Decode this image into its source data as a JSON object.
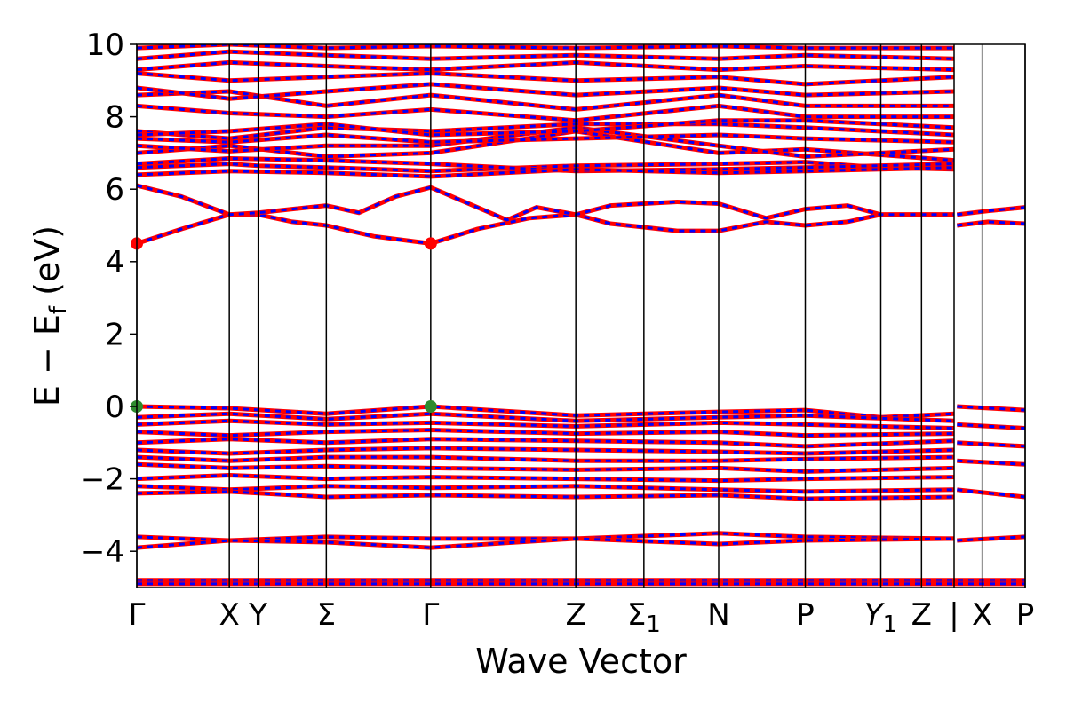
{
  "chart_data": {
    "type": "line",
    "title": "",
    "xlabel": "Wave Vector",
    "ylabel": "E − E",
    "ylabel_sub": "f",
    "ylabel_unit": " (eV)",
    "ylim": [
      -5,
      10
    ],
    "yticks": [
      {
        "value": 10,
        "label": "10"
      },
      {
        "value": 8,
        "label": "8"
      },
      {
        "value": 6,
        "label": "6"
      },
      {
        "value": 4,
        "label": "4"
      },
      {
        "value": 2,
        "label": "2"
      },
      {
        "value": 0,
        "label": "0"
      },
      {
        "value": -2,
        "label": "−2"
      },
      {
        "value": -4,
        "label": "−4"
      }
    ],
    "xlim": [
      0,
      12.0
    ],
    "kpoints": [
      {
        "x": 0.0,
        "label": "Γ",
        "sub": ""
      },
      {
        "x": 1.25,
        "label": "X",
        "sub": ""
      },
      {
        "x": 1.64,
        "label": "Y",
        "sub": ""
      },
      {
        "x": 2.56,
        "label": "Σ",
        "sub": ""
      },
      {
        "x": 3.97,
        "label": "Γ",
        "sub": ""
      },
      {
        "x": 5.93,
        "label": "Z",
        "sub": ""
      },
      {
        "x": 6.85,
        "label": "Σ",
        "sub": "1"
      },
      {
        "x": 7.86,
        "label": "N",
        "sub": ""
      },
      {
        "x": 9.03,
        "label": "P",
        "sub": ""
      },
      {
        "x": 10.05,
        "label": "Y",
        "sub": "1",
        "italic": true
      },
      {
        "x": 10.6,
        "label": "Z",
        "sub": ""
      },
      {
        "x": 11.04,
        "label": "|",
        "sub": ""
      },
      {
        "x": 11.42,
        "label": "X",
        "sub": ""
      },
      {
        "x": 12.0,
        "label": "P",
        "sub": ""
      }
    ],
    "series_colors": {
      "spin_up": "#ff0000",
      "spin_down": "#0000ff"
    },
    "conduction_bands": [
      [
        [
          0,
          4.5
        ],
        [
          0.6,
          4.9
        ],
        [
          1.25,
          5.3
        ],
        [
          1.64,
          5.3
        ],
        [
          2.1,
          5.1
        ],
        [
          2.56,
          5.0
        ],
        [
          3.2,
          4.7
        ],
        [
          3.97,
          4.5
        ],
        [
          4.6,
          4.9
        ],
        [
          5.3,
          5.2
        ],
        [
          5.93,
          5.3
        ],
        [
          6.4,
          5.05
        ],
        [
          6.85,
          4.95
        ],
        [
          7.3,
          4.85
        ],
        [
          7.86,
          4.85
        ],
        [
          8.5,
          5.1
        ],
        [
          9.03,
          5.0
        ],
        [
          9.6,
          5.1
        ],
        [
          10.05,
          5.3
        ],
        [
          10.6,
          5.3
        ],
        [
          11.04,
          5.3
        ]
      ],
      [
        [
          0,
          6.1
        ],
        [
          0.6,
          5.8
        ],
        [
          1.25,
          5.3
        ],
        [
          1.64,
          5.35
        ],
        [
          2.1,
          5.45
        ],
        [
          2.56,
          5.55
        ],
        [
          3.0,
          5.35
        ],
        [
          3.5,
          5.8
        ],
        [
          3.97,
          6.05
        ],
        [
          4.6,
          5.5
        ],
        [
          5.0,
          5.15
        ],
        [
          5.4,
          5.5
        ],
        [
          5.93,
          5.3
        ],
        [
          6.4,
          5.55
        ],
        [
          6.85,
          5.6
        ],
        [
          7.3,
          5.65
        ],
        [
          7.86,
          5.6
        ],
        [
          8.5,
          5.2
        ],
        [
          9.03,
          5.45
        ],
        [
          9.6,
          5.55
        ],
        [
          10.05,
          5.3
        ],
        [
          10.6,
          5.3
        ],
        [
          11.04,
          5.3
        ]
      ],
      [
        [
          11.08,
          5.0
        ],
        [
          11.5,
          5.1
        ],
        [
          12.0,
          5.05
        ]
      ],
      [
        [
          11.08,
          5.3
        ],
        [
          11.5,
          5.4
        ],
        [
          12.0,
          5.5
        ]
      ],
      [
        [
          0,
          6.6
        ],
        [
          1.25,
          6.7
        ],
        [
          1.64,
          6.65
        ],
        [
          2.56,
          6.6
        ],
        [
          3.97,
          6.5
        ],
        [
          5.93,
          6.65
        ],
        [
          7.86,
          6.7
        ],
        [
          9.03,
          6.75
        ],
        [
          10.05,
          6.6
        ],
        [
          11.04,
          6.55
        ]
      ],
      [
        [
          0,
          6.7
        ],
        [
          1.25,
          6.85
        ],
        [
          2.56,
          6.8
        ],
        [
          3.97,
          6.7
        ],
        [
          5.93,
          6.5
        ],
        [
          7.86,
          6.55
        ],
        [
          9.03,
          6.6
        ],
        [
          11.04,
          6.7
        ]
      ],
      [
        [
          0,
          6.4
        ],
        [
          1.25,
          6.5
        ],
        [
          2.56,
          6.45
        ],
        [
          3.97,
          6.35
        ],
        [
          5.93,
          6.55
        ],
        [
          7.86,
          6.45
        ],
        [
          9.03,
          6.5
        ],
        [
          11.04,
          6.6
        ]
      ],
      [
        [
          0,
          7.0
        ],
        [
          1.25,
          7.2
        ],
        [
          2.56,
          6.9
        ],
        [
          3.97,
          7.0
        ],
        [
          5.93,
          7.6
        ],
        [
          7.86,
          7.0
        ],
        [
          9.03,
          7.1
        ],
        [
          11.04,
          6.8
        ]
      ],
      [
        [
          0,
          7.2
        ],
        [
          1.25,
          7.05
        ],
        [
          2.56,
          7.2
        ],
        [
          3.97,
          7.2
        ],
        [
          5.93,
          7.7
        ],
        [
          7.86,
          7.2
        ],
        [
          9.03,
          6.9
        ],
        [
          11.04,
          7.1
        ]
      ],
      [
        [
          0,
          7.4
        ],
        [
          1.25,
          7.3
        ],
        [
          2.56,
          7.5
        ],
        [
          3.97,
          7.3
        ],
        [
          5.93,
          7.4
        ],
        [
          7.86,
          7.5
        ],
        [
          9.03,
          7.4
        ],
        [
          11.04,
          7.3
        ]
      ],
      [
        [
          0,
          7.6
        ],
        [
          1.25,
          7.4
        ],
        [
          2.56,
          7.7
        ],
        [
          3.97,
          7.6
        ],
        [
          5.93,
          7.8
        ],
        [
          7.86,
          7.8
        ],
        [
          9.03,
          7.7
        ],
        [
          11.04,
          7.5
        ]
      ],
      [
        [
          0,
          7.5
        ],
        [
          1.25,
          7.6
        ],
        [
          2.56,
          7.8
        ],
        [
          3.97,
          7.5
        ],
        [
          5.93,
          7.6
        ],
        [
          7.86,
          7.9
        ],
        [
          9.03,
          7.9
        ],
        [
          11.04,
          7.7
        ]
      ],
      [
        [
          0,
          8.3
        ],
        [
          1.25,
          8.1
        ],
        [
          2.56,
          8.0
        ],
        [
          3.97,
          8.2
        ],
        [
          5.93,
          7.9
        ],
        [
          7.86,
          8.3
        ],
        [
          9.03,
          8.0
        ],
        [
          11.04,
          8.0
        ]
      ],
      [
        [
          0,
          8.6
        ],
        [
          1.25,
          8.7
        ],
        [
          2.56,
          8.3
        ],
        [
          3.97,
          8.6
        ],
        [
          5.93,
          8.2
        ],
        [
          7.86,
          8.6
        ],
        [
          9.03,
          8.3
        ],
        [
          11.04,
          8.3
        ]
      ],
      [
        [
          0,
          8.8
        ],
        [
          1.25,
          8.5
        ],
        [
          2.56,
          8.7
        ],
        [
          3.97,
          8.9
        ],
        [
          5.93,
          8.6
        ],
        [
          7.86,
          8.8
        ],
        [
          9.03,
          8.6
        ],
        [
          11.04,
          8.7
        ]
      ],
      [
        [
          0,
          9.2
        ],
        [
          1.25,
          9.0
        ],
        [
          2.56,
          9.1
        ],
        [
          3.97,
          9.2
        ],
        [
          5.93,
          9.0
        ],
        [
          7.86,
          9.1
        ],
        [
          9.03,
          8.9
        ],
        [
          11.04,
          9.1
        ]
      ],
      [
        [
          0,
          9.3
        ],
        [
          1.25,
          9.5
        ],
        [
          2.56,
          9.4
        ],
        [
          3.97,
          9.3
        ],
        [
          5.93,
          9.5
        ],
        [
          7.86,
          9.3
        ],
        [
          9.03,
          9.4
        ],
        [
          11.04,
          9.3
        ]
      ],
      [
        [
          0,
          9.6
        ],
        [
          1.25,
          9.8
        ],
        [
          2.56,
          9.7
        ],
        [
          3.97,
          9.6
        ],
        [
          5.93,
          9.7
        ],
        [
          7.86,
          9.6
        ],
        [
          9.03,
          9.7
        ],
        [
          11.04,
          9.6
        ]
      ],
      [
        [
          0,
          9.9
        ],
        [
          1.25,
          10.0
        ],
        [
          2.56,
          9.9
        ],
        [
          3.97,
          9.95
        ],
        [
          5.93,
          9.9
        ],
        [
          7.86,
          9.95
        ],
        [
          9.03,
          9.9
        ],
        [
          11.04,
          9.9
        ]
      ]
    ],
    "valence_bands": [
      [
        [
          0,
          0.0
        ],
        [
          1.25,
          -0.05
        ],
        [
          2.56,
          -0.2
        ],
        [
          3.97,
          0.0
        ],
        [
          5.93,
          -0.25
        ],
        [
          7.86,
          -0.15
        ],
        [
          9.03,
          -0.1
        ],
        [
          10.05,
          -0.3
        ],
        [
          11.04,
          -0.2
        ]
      ],
      [
        [
          0,
          -0.3
        ],
        [
          1.25,
          -0.2
        ],
        [
          2.56,
          -0.35
        ],
        [
          3.97,
          -0.2
        ],
        [
          5.93,
          -0.4
        ],
        [
          7.86,
          -0.3
        ],
        [
          9.03,
          -0.25
        ],
        [
          11.04,
          -0.4
        ]
      ],
      [
        [
          0,
          -0.5
        ],
        [
          1.25,
          -0.4
        ],
        [
          2.56,
          -0.5
        ],
        [
          3.97,
          -0.45
        ],
        [
          5.93,
          -0.55
        ],
        [
          7.86,
          -0.45
        ],
        [
          9.03,
          -0.5
        ],
        [
          11.04,
          -0.6
        ]
      ],
      [
        [
          0,
          -0.7
        ],
        [
          1.25,
          -0.8
        ],
        [
          2.56,
          -0.7
        ],
        [
          3.97,
          -0.65
        ],
        [
          5.93,
          -0.75
        ],
        [
          7.86,
          -0.7
        ],
        [
          9.03,
          -0.8
        ],
        [
          11.04,
          -0.75
        ]
      ],
      [
        [
          0,
          -1.0
        ],
        [
          1.25,
          -0.9
        ],
        [
          2.56,
          -1.0
        ],
        [
          3.97,
          -0.9
        ],
        [
          5.93,
          -0.95
        ],
        [
          7.86,
          -1.0
        ],
        [
          9.03,
          -1.1
        ],
        [
          11.04,
          -0.95
        ]
      ],
      [
        [
          0,
          -1.2
        ],
        [
          1.25,
          -1.3
        ],
        [
          2.56,
          -1.2
        ],
        [
          3.97,
          -1.15
        ],
        [
          5.93,
          -1.2
        ],
        [
          7.86,
          -1.25
        ],
        [
          9.03,
          -1.3
        ],
        [
          11.04,
          -1.2
        ]
      ],
      [
        [
          0,
          -1.4
        ],
        [
          1.25,
          -1.5
        ],
        [
          2.56,
          -1.4
        ],
        [
          3.97,
          -1.4
        ],
        [
          5.93,
          -1.5
        ],
        [
          7.86,
          -1.5
        ],
        [
          9.03,
          -1.45
        ],
        [
          11.04,
          -1.4
        ]
      ],
      [
        [
          0,
          -1.6
        ],
        [
          1.25,
          -1.7
        ],
        [
          2.56,
          -1.65
        ],
        [
          3.97,
          -1.7
        ],
        [
          5.93,
          -1.75
        ],
        [
          7.86,
          -1.7
        ],
        [
          9.03,
          -1.8
        ],
        [
          11.04,
          -1.7
        ]
      ],
      [
        [
          0,
          -2.0
        ],
        [
          1.25,
          -1.9
        ],
        [
          2.56,
          -2.0
        ],
        [
          3.97,
          -1.95
        ],
        [
          5.93,
          -2.0
        ],
        [
          7.86,
          -2.05
        ],
        [
          9.03,
          -2.0
        ],
        [
          11.04,
          -1.95
        ]
      ],
      [
        [
          0,
          -2.2
        ],
        [
          1.25,
          -2.3
        ],
        [
          2.56,
          -2.2
        ],
        [
          3.97,
          -2.25
        ],
        [
          5.93,
          -2.2
        ],
        [
          7.86,
          -2.3
        ],
        [
          9.03,
          -2.35
        ],
        [
          11.04,
          -2.3
        ]
      ],
      [
        [
          0,
          -2.4
        ],
        [
          1.25,
          -2.35
        ],
        [
          2.56,
          -2.5
        ],
        [
          3.97,
          -2.45
        ],
        [
          5.93,
          -2.5
        ],
        [
          7.86,
          -2.45
        ],
        [
          9.03,
          -2.55
        ],
        [
          11.04,
          -2.5
        ]
      ],
      [
        [
          0,
          -3.6
        ],
        [
          1.25,
          -3.7
        ],
        [
          2.56,
          -3.6
        ],
        [
          3.97,
          -3.65
        ],
        [
          5.93,
          -3.65
        ],
        [
          7.86,
          -3.5
        ],
        [
          9.03,
          -3.6
        ],
        [
          11.04,
          -3.65
        ]
      ],
      [
        [
          0,
          -3.9
        ],
        [
          1.25,
          -3.7
        ],
        [
          2.56,
          -3.75
        ],
        [
          3.97,
          -3.9
        ],
        [
          5.93,
          -3.65
        ],
        [
          7.86,
          -3.8
        ],
        [
          9.03,
          -3.7
        ],
        [
          11.04,
          -3.65
        ]
      ],
      [
        [
          0,
          -4.8
        ],
        [
          12.0,
          -4.8
        ]
      ],
      [
        [
          0,
          -4.85
        ],
        [
          12.0,
          -4.85
        ]
      ],
      [
        [
          0,
          -4.9
        ],
        [
          12.0,
          -4.9
        ]
      ],
      [
        [
          11.08,
          0.0
        ],
        [
          12.0,
          -0.1
        ]
      ],
      [
        [
          11.08,
          -0.5
        ],
        [
          12.0,
          -0.6
        ]
      ],
      [
        [
          11.08,
          -1.0
        ],
        [
          12.0,
          -1.1
        ]
      ],
      [
        [
          11.08,
          -1.5
        ],
        [
          12.0,
          -1.6
        ]
      ],
      [
        [
          11.08,
          -2.3
        ],
        [
          12.0,
          -2.5
        ]
      ],
      [
        [
          11.08,
          -3.7
        ],
        [
          12.0,
          -3.6
        ]
      ]
    ],
    "markers": [
      {
        "x": 0.0,
        "y": 4.5,
        "color": "#ff0000"
      },
      {
        "x": 3.97,
        "y": 4.5,
        "color": "#ff0000"
      },
      {
        "x": 0.0,
        "y": 0.0,
        "color": "#2e8b2e"
      },
      {
        "x": 3.97,
        "y": 0.0,
        "color": "#2e8b2e"
      }
    ]
  }
}
